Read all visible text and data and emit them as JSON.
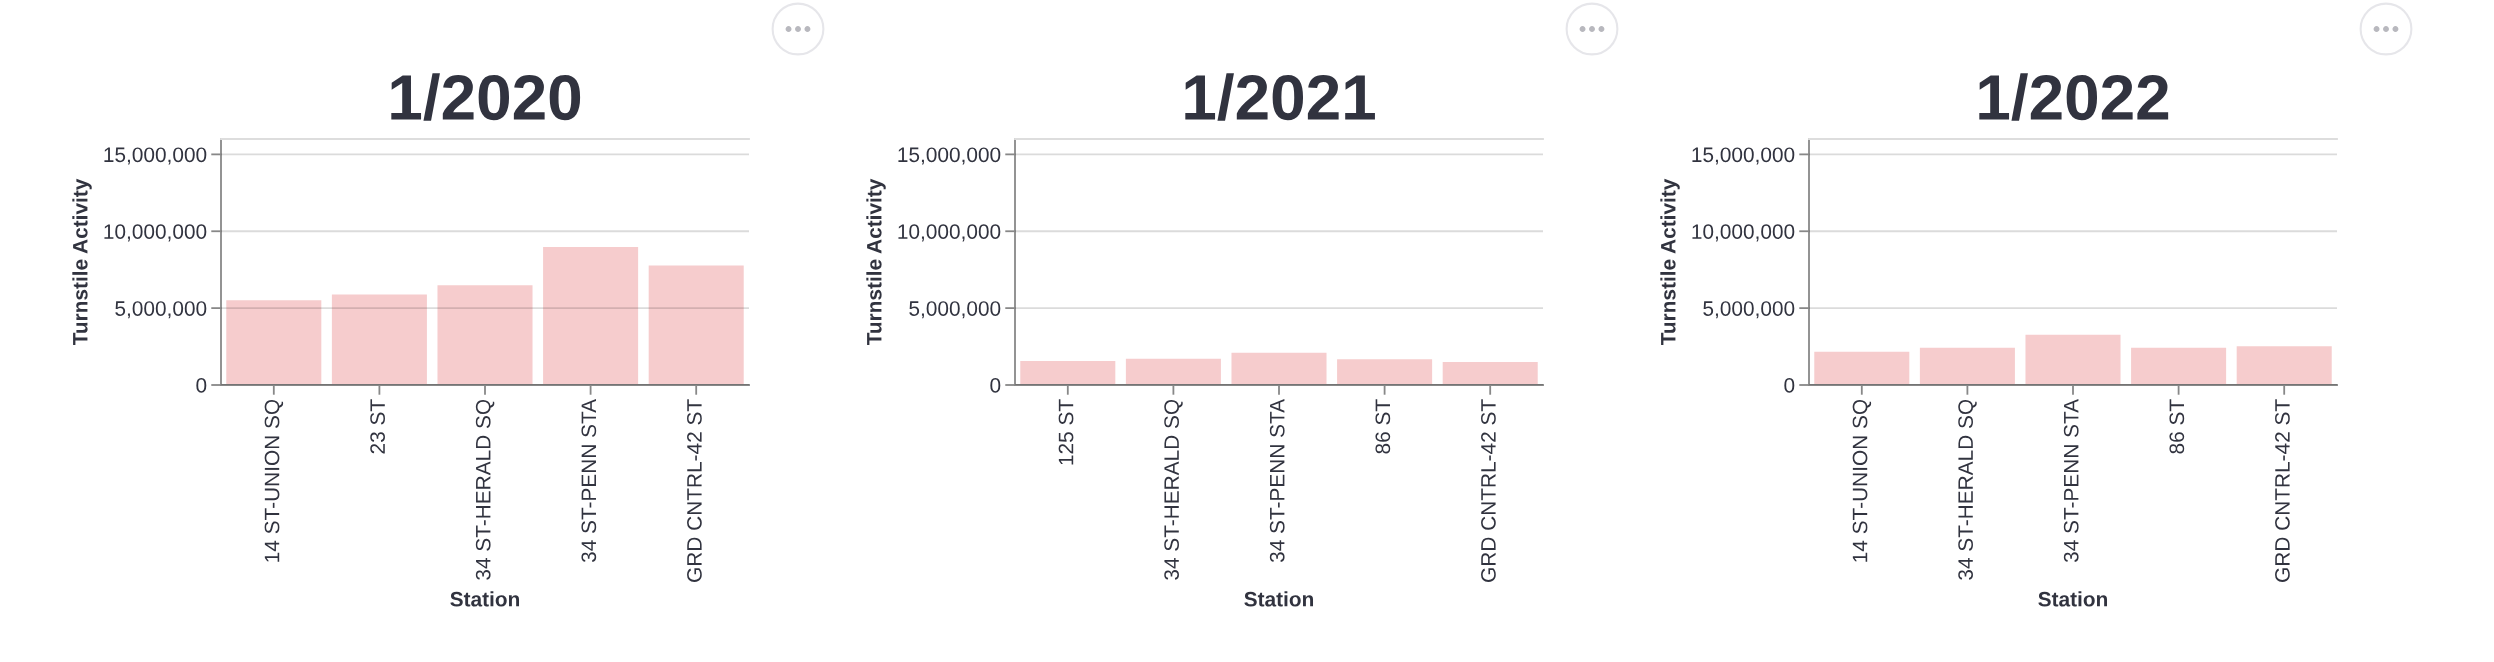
{
  "chart_data": [
    {
      "type": "bar",
      "title": "1/2020",
      "xlabel": "Station",
      "ylabel": "Turnstile Activity",
      "categories": [
        "14 ST-UNION SQ",
        "23 ST",
        "34 ST-HERALD SQ",
        "34 ST-PENN STA",
        "GRD CNTRL-42 ST"
      ],
      "values": [
        5520000,
        5880000,
        6480000,
        8970000,
        7770000
      ],
      "color": "#f6cccd",
      "ylim": [
        0,
        16000000
      ],
      "yticks": [
        0,
        {
          "value": 5000000,
          "label": "5,000,000"
        },
        {
          "value": 10000000,
          "label": "10,000,000"
        },
        {
          "value": 15000000,
          "label": "15,000,000"
        }
      ],
      "grid": "y"
    },
    {
      "type": "bar",
      "title": "1/2021",
      "xlabel": "Station",
      "ylabel": "Turnstile Activity",
      "categories": [
        "125 ST",
        "34 ST-HERALD SQ",
        "34 ST-PENN STA",
        "86 ST",
        "GRD CNTRL-42 ST"
      ],
      "values": [
        1560000,
        1710000,
        2100000,
        1680000,
        1500000
      ],
      "color": "#f6cccd",
      "ylim": [
        0,
        16000000
      ],
      "yticks": [
        0,
        {
          "value": 5000000,
          "label": "5,000,000"
        },
        {
          "value": 10000000,
          "label": "10,000,000"
        },
        {
          "value": 15000000,
          "label": "15,000,000"
        }
      ],
      "grid": "y"
    },
    {
      "type": "bar",
      "title": "1/2022",
      "xlabel": "Station",
      "ylabel": "Turnstile Activity",
      "categories": [
        "14 ST-UNION SQ",
        "34 ST-HERALD SQ",
        "34 ST-PENN STA",
        "86 ST",
        "GRD CNTRL-42 ST"
      ],
      "values": [
        2160000,
        2430000,
        3270000,
        2430000,
        2520000
      ],
      "color": "#f6cccd",
      "ylim": [
        0,
        16000000
      ],
      "yticks": [
        0,
        {
          "value": 5000000,
          "label": "5,000,000"
        },
        {
          "value": 10000000,
          "label": "10,000,000"
        },
        {
          "value": 15000000,
          "label": "15,000,000"
        }
      ],
      "grid": "y"
    }
  ]
}
